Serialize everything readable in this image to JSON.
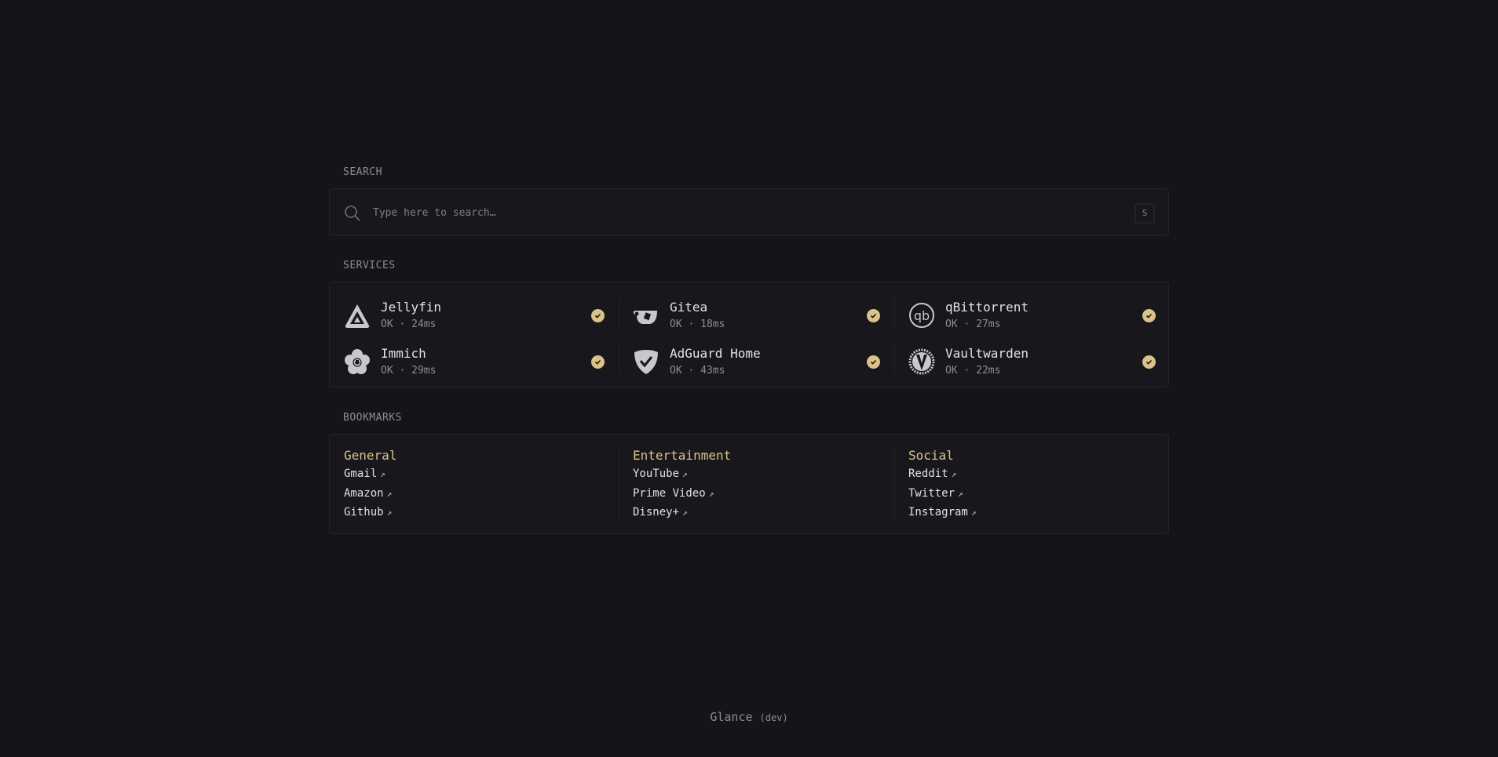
{
  "search": {
    "label": "SEARCH",
    "placeholder": "Type here to search…",
    "shortcut": "S"
  },
  "services": {
    "label": "SERVICES",
    "items": [
      {
        "name": "Jellyfin",
        "status": "OK",
        "latency": "24ms",
        "icon": "jellyfin-icon"
      },
      {
        "name": "Gitea",
        "status": "OK",
        "latency": "18ms",
        "icon": "gitea-icon"
      },
      {
        "name": "qBittorrent",
        "status": "OK",
        "latency": "27ms",
        "icon": "qbittorrent-icon"
      },
      {
        "name": "Immich",
        "status": "OK",
        "latency": "29ms",
        "icon": "immich-icon"
      },
      {
        "name": "AdGuard Home",
        "status": "OK",
        "latency": "43ms",
        "icon": "adguard-icon"
      },
      {
        "name": "Vaultwarden",
        "status": "OK",
        "latency": "22ms",
        "icon": "vaultwarden-icon"
      }
    ]
  },
  "bookmarks": {
    "label": "BOOKMARKS",
    "groups": [
      {
        "title": "General",
        "links": [
          "Gmail",
          "Amazon",
          "Github"
        ]
      },
      {
        "title": "Entertainment",
        "links": [
          "YouTube",
          "Prime Video",
          "Disney+"
        ]
      },
      {
        "title": "Social",
        "links": [
          "Reddit",
          "Twitter",
          "Instagram"
        ]
      }
    ]
  },
  "footer": {
    "name": "Glance",
    "version": "(dev)"
  },
  "colors": {
    "accent": "#d9c38a",
    "background": "#151519",
    "card": "#18181c"
  }
}
